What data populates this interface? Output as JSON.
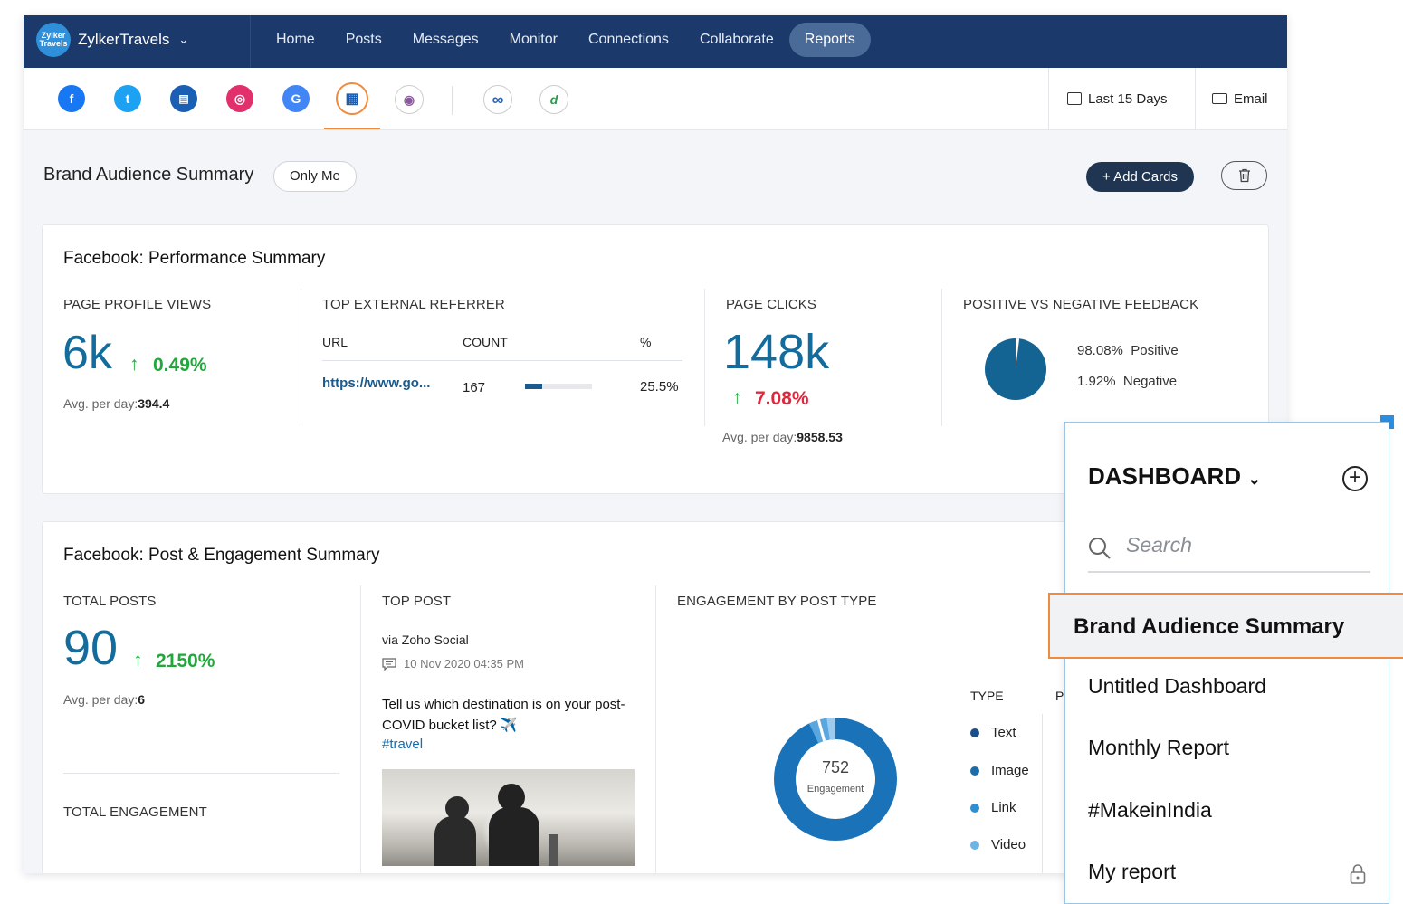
{
  "topnav": {
    "brand_logo_text": "Zylker Travels",
    "brand_name": "ZylkerTravels",
    "items": [
      {
        "label": "Home"
      },
      {
        "label": "Posts"
      },
      {
        "label": "Messages"
      },
      {
        "label": "Monitor"
      },
      {
        "label": "Connections"
      },
      {
        "label": "Collaborate"
      },
      {
        "label": "Reports",
        "active": true
      }
    ]
  },
  "networks": [
    {
      "icon": "facebook-icon",
      "glyph": "f",
      "color": "#1877f2"
    },
    {
      "icon": "twitter-icon",
      "glyph": "t",
      "color": "#1da1f2"
    },
    {
      "icon": "gmb-icon",
      "glyph": "▤",
      "color": "#1a5fb4"
    },
    {
      "icon": "instagram-icon",
      "glyph": "◎",
      "color": "#e1306c"
    },
    {
      "icon": "google-icon",
      "glyph": "G",
      "color": "#4285f4"
    },
    {
      "icon": "dashboard-icon",
      "glyph": "▦",
      "color": "#1a5fb4",
      "active": true
    },
    {
      "icon": "zoho-icon",
      "glyph": "◉",
      "color": "#8b5a9c"
    },
    {
      "icon": "chain-icon",
      "glyph": "∞",
      "color": "#2a64b4"
    },
    {
      "icon": "analytics-icon",
      "glyph": "d",
      "color": "#2a9a4a"
    }
  ],
  "toolbar": {
    "date_range": "Last 15 Days",
    "email_label": "Email"
  },
  "header": {
    "title": "Brand Audience Summary",
    "visibility": "Only Me",
    "add_cards": "+ Add Cards"
  },
  "perf_card": {
    "title": "Facebook: Performance Summary",
    "page_profile_views": {
      "label": "PAGE PROFILE VIEWS",
      "value": "6k",
      "change": "0.49%",
      "avg_label": "Avg. per day:",
      "avg_value": "394.4"
    },
    "top_referrer": {
      "label": "TOP EXTERNAL REFERRER",
      "columns": [
        "URL",
        "COUNT",
        "%"
      ],
      "rows": [
        {
          "url": "https://www.go...",
          "count": "167",
          "percent": "25.5%",
          "bar_fraction": 0.255
        }
      ]
    },
    "page_clicks": {
      "label": "PAGE CLICKS",
      "value": "148k",
      "change": "7.08%",
      "avg_label": "Avg. per day:",
      "avg_value": "9858.53"
    },
    "feedback": {
      "label": "POSITIVE VS NEGATIVE FEEDBACK",
      "positive_pct": "98.08%",
      "positive_label": "Positive",
      "negative_pct": "1.92%",
      "negative_label": "Negative"
    }
  },
  "post_card": {
    "title": "Facebook: Post & Engagement Summary",
    "total_posts": {
      "label": "TOTAL POSTS",
      "value": "90",
      "change": "2150%",
      "avg_label": "Avg. per day:",
      "avg_value": "6"
    },
    "total_engagement": {
      "label": "TOTAL ENGAGEMENT"
    },
    "top_post": {
      "label": "TOP POST",
      "via": "via Zoho Social",
      "date": "10 Nov 2020 04:35 PM",
      "text": "Tell us which destination is on your post-COVID bucket list? ✈️",
      "hashtag": "#travel"
    },
    "engagement_by_type": {
      "label": "ENGAGEMENT BY POST TYPE",
      "total": "752",
      "total_label": "Engagement",
      "type_header": "TYPE",
      "second_header": "P",
      "types": [
        {
          "name": "Text",
          "color": "#1b4f8a"
        },
        {
          "name": "Image",
          "color": "#1b6ca8"
        },
        {
          "name": "Link",
          "color": "#2f8fd0"
        },
        {
          "name": "Video",
          "color": "#6fb2e3"
        }
      ]
    }
  },
  "dashboard_panel": {
    "title": "DASHBOARD",
    "search_placeholder": "Search",
    "items": [
      {
        "label": "Brand Audience Summary",
        "active": true
      },
      {
        "label": "Untitled Dashboard"
      },
      {
        "label": "Monthly Report"
      },
      {
        "label": "#MakeinIndia"
      },
      {
        "label": "My report",
        "locked": true
      }
    ]
  }
}
